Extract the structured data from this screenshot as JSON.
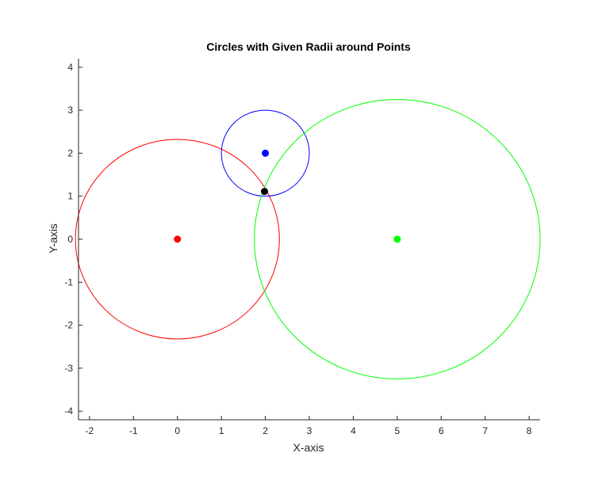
{
  "chart_data": {
    "type": "scatter",
    "title": "Circles with Given Radii around Points",
    "xlabel": "X-axis",
    "ylabel": "Y-axis",
    "xlim": [
      -2.25,
      8.25
    ],
    "ylim": [
      -4.2,
      4.2
    ],
    "xticks": [
      -2,
      -1,
      0,
      1,
      2,
      3,
      4,
      5,
      6,
      7,
      8
    ],
    "yticks": [
      -4,
      -3,
      -2,
      -1,
      0,
      1,
      2,
      3,
      4
    ],
    "grid": false,
    "legend": "none",
    "circles": [
      {
        "center": [
          0,
          0
        ],
        "radius": 2.32,
        "color": "#ff0000"
      },
      {
        "center": [
          2,
          2
        ],
        "radius": 1.0,
        "color": "#0000ff"
      },
      {
        "center": [
          5,
          0
        ],
        "radius": 3.25,
        "color": "#00ff00"
      }
    ],
    "points": [
      {
        "x": 0,
        "y": 0,
        "color": "#ff0000"
      },
      {
        "x": 2,
        "y": 2,
        "color": "#0000ff"
      },
      {
        "x": 5,
        "y": 0,
        "color": "#00ff00"
      },
      {
        "x": 1.98,
        "y": 1.11,
        "color": "#000000"
      }
    ]
  }
}
